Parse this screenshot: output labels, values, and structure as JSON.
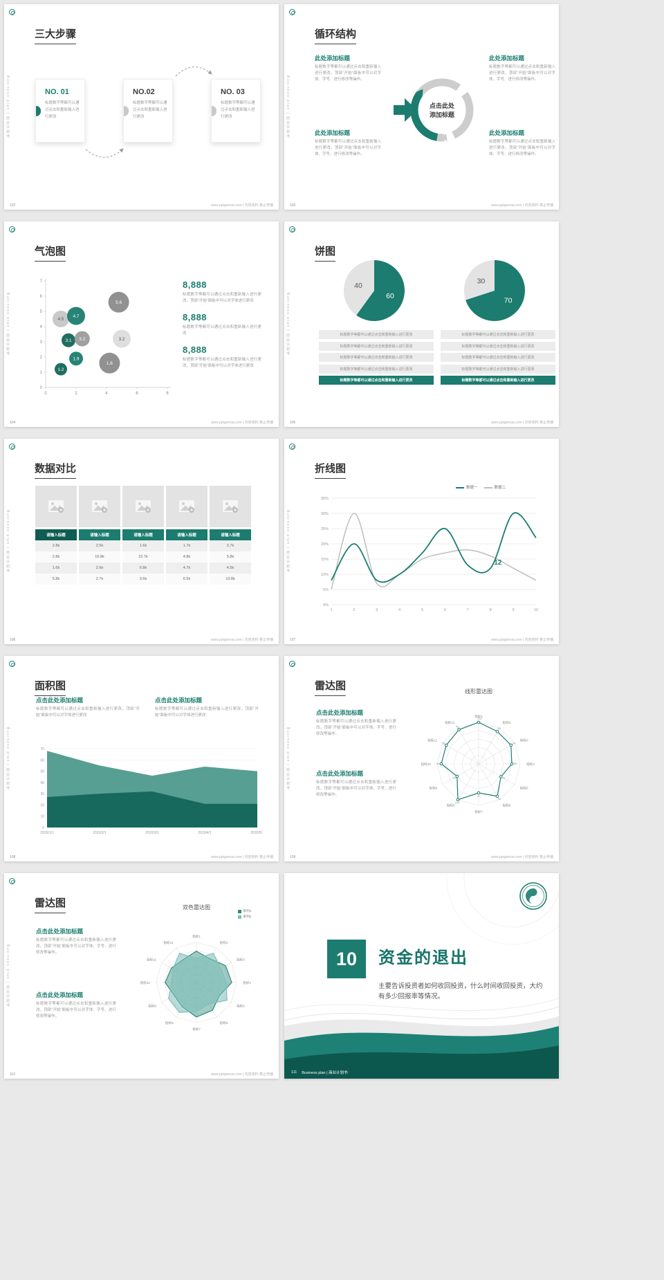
{
  "theme": {
    "accent": "#1b7c6f",
    "accent_dark": "#0f5c52",
    "page_bg": "#e9e9e9"
  },
  "common": {
    "brand_vertical": "Business plan | 商业计划书",
    "footer_site": "www.pptgensia.com | 内容资料 禁止传播",
    "click_title": "点击此处添加标题",
    "here_title": "此处添加标题",
    "body_short": "标题数字等都可以通过点击和重新输入进行更改",
    "body_mid": "标题数字等都可以通过点击和重新输入进行更改，顶部“开始”面板中可以对字体进行更改",
    "body_long": "标题数字等都可以通过点击和重新输入进行更改，顶部“开始”面板中可以对字体、字号、进行修改等操作。"
  },
  "slides": {
    "s102": {
      "page": "102",
      "title": "三大步骤",
      "steps": [
        {
          "no": "NO. 01"
        },
        {
          "no": "NO.02"
        },
        {
          "no": "NO. 03"
        }
      ]
    },
    "s103": {
      "page": "103",
      "title": "循环结构",
      "center1": "点击此处",
      "center2": "添加标题"
    },
    "s104": {
      "page": "104",
      "title": "气泡图",
      "stats": [
        {
          "value": "8,888"
        },
        {
          "value": "8,888"
        },
        {
          "value": "8,888"
        }
      ],
      "chart_data": {
        "type": "scatter",
        "xlim": [
          0,
          8
        ],
        "ylim": [
          0,
          7
        ],
        "x_ticks": [
          0,
          2,
          4,
          6,
          8
        ],
        "y_ticks": [
          0,
          1,
          2,
          3,
          4,
          5,
          6,
          7
        ],
        "bubbles": [
          {
            "x": 1,
            "y": 4.5,
            "r": 12,
            "label": "4.5",
            "color": "#c6c6c6",
            "text_color": "#555555"
          },
          {
            "x": 2,
            "y": 4.7,
            "r": 13,
            "label": "4.7",
            "color": "#1b7c6f",
            "text_color": "#ffffff"
          },
          {
            "x": 4.8,
            "y": 5.6,
            "r": 15,
            "label": "5.6",
            "color": "#8b8b8b",
            "text_color": "#ffffff"
          },
          {
            "x": 1.5,
            "y": 3.1,
            "r": 10,
            "label": "3.1",
            "color": "#14655a",
            "text_color": "#ffffff"
          },
          {
            "x": 2.4,
            "y": 3.2,
            "r": 11,
            "label": "3.2",
            "color": "#9b9b9b",
            "text_color": "#ffffff"
          },
          {
            "x": 5,
            "y": 3.2,
            "r": 13,
            "label": "3.2",
            "color": "#dcdcdc",
            "text_color": "#555555"
          },
          {
            "x": 2,
            "y": 1.9,
            "r": 10,
            "label": "1.9",
            "color": "#1b7c6f",
            "text_color": "#ffffff"
          },
          {
            "x": 1,
            "y": 1.2,
            "r": 9,
            "label": "1.2",
            "color": "#14655a",
            "text_color": "#ffffff"
          },
          {
            "x": 4.2,
            "y": 1.6,
            "r": 15,
            "label": "1.6",
            "color": "#8b8b8b",
            "text_color": "#ffffff"
          }
        ]
      }
    },
    "s105": {
      "page": "105",
      "title": "饼图",
      "chart_data": [
        {
          "type": "pie",
          "values": [
            60,
            40
          ],
          "labels": [
            "60",
            "40"
          ],
          "colors": [
            "#1b7c6f",
            "#e3e3e3"
          ],
          "label_colors": [
            "#ffffff",
            "#555555"
          ]
        },
        {
          "type": "pie",
          "values": [
            70,
            30
          ],
          "labels": [
            "70",
            "30"
          ],
          "colors": [
            "#1b7c6f",
            "#e3e3e3"
          ],
          "label_colors": [
            "#ffffff",
            "#555555"
          ]
        }
      ]
    },
    "s106": {
      "page": "106",
      "title": "数据对比",
      "table": {
        "headers": [
          "请输入标题",
          "请输入标题",
          "请输入标题",
          "请输入标题",
          "请输入标题"
        ],
        "rows": [
          [
            "2.8k",
            "2.5k",
            "1.6k",
            "1.7k",
            "3.7k"
          ],
          [
            "2.8k",
            "16.8k",
            "22.7k",
            "4.8k",
            "5.8k"
          ],
          [
            "1.6k",
            "2.6k",
            "6.8k",
            "4.7k",
            "4.5k"
          ],
          [
            "5.8k",
            "2.7k",
            "3.6k",
            "6.5k",
            "10.8k"
          ]
        ]
      }
    },
    "s107": {
      "page": "107",
      "title": "折线图",
      "chart_data": {
        "type": "line",
        "x": [
          1,
          2,
          3,
          4,
          5,
          6,
          7,
          8,
          9,
          10
        ],
        "ylim": [
          0,
          35
        ],
        "y_ticks": [
          "0%",
          "5%",
          "10%",
          "15%",
          "20%",
          "25%",
          "30%",
          "35%"
        ],
        "series": [
          {
            "name": "数据一",
            "color": "#1b7c6f",
            "values": [
              8,
              20,
              8,
              10,
              17,
              25,
              13,
              12,
              30,
              22
            ]
          },
          {
            "name": "数据二",
            "color": "#bdbdbd",
            "values": [
              5,
              30,
              7,
              10,
              15,
              17,
              18,
              16,
              12,
              8
            ]
          }
        ],
        "point_label": {
          "series": 0,
          "index": 7,
          "text": "12"
        }
      }
    },
    "s108": {
      "page": "108",
      "title": "面积图",
      "chart_data": {
        "type": "area",
        "categories": [
          "2020/1/1",
          "2020/2/1",
          "2020/3/1",
          "2020/4/1",
          "2020/5/1"
        ],
        "ylim": [
          0,
          70
        ],
        "y_ticks": [
          0,
          10,
          20,
          30,
          40,
          50,
          60,
          70
        ],
        "series": [
          {
            "color": "#4a978a",
            "values": [
              68,
              55,
              46,
              54,
              50
            ]
          },
          {
            "color": "#17695e",
            "values": [
              27,
              30,
              32,
              21,
              21
            ]
          }
        ]
      }
    },
    "s109": {
      "page": "109",
      "title": "雷达图",
      "chart_data": {
        "type": "radar",
        "title": "线形雷达图",
        "max": 100,
        "categories": [
          "指标1",
          "指标2",
          "指标3",
          "指标4",
          "指标5",
          "指标6",
          "指标7",
          "指标8",
          "指标9",
          "指标10",
          "指标11",
          "指标12"
        ],
        "series": [
          {
            "color": "#1b7c6f",
            "values": [
              100,
              90,
              90,
              80,
              62,
              90,
              70,
              100,
              60,
              90,
              90,
              95
            ]
          }
        ]
      }
    },
    "s110": {
      "page": "110",
      "title": "雷达图",
      "chart_data": {
        "type": "radar",
        "title": "双色雷达图",
        "max": 100,
        "categories": [
          "指标1",
          "指标2",
          "指标3",
          "指标4",
          "指标5",
          "指标6",
          "指标7",
          "指标8",
          "指标9",
          "指标10",
          "指标11",
          "指标12"
        ],
        "series": [
          {
            "name": "系列1",
            "color": "#2f8b7d",
            "fill": "rgba(47,139,125,0.45)",
            "values": [
              78,
              68,
              84,
              88,
              66,
              80,
              86,
              70,
              64,
              78,
              72,
              66
            ]
          },
          {
            "name": "系列2",
            "color": "#7fc0ba",
            "fill": "rgba(127,192,186,0.55)",
            "values": [
              60,
              84,
              70,
              74,
              88,
              62,
              72,
              86,
              80,
              62,
              68,
              84
            ]
          }
        ]
      }
    },
    "s111": {
      "page": "111",
      "number": "10",
      "title": "资金的退出",
      "body": "主要告诉投资者如何收回投资，什么时间收回投资，大约有多少回报率等情况。",
      "footer_brand": "Business plan | 商业计划书"
    }
  }
}
